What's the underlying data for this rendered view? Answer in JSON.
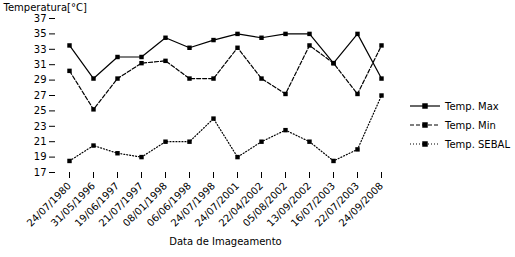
{
  "chart_data": {
    "type": "line",
    "xlabel": "Data de Imageamento",
    "ylabel": "Temperatura[°C]",
    "categories": [
      "24/07/1980",
      "31/05/1996",
      "19/06/1997",
      "21/07/1997",
      "08/01/1998",
      "06/06/1998",
      "24/07/1998",
      "24/07/2001",
      "22/04/2002",
      "05/08/2002",
      "13/09/2002",
      "16/07/2003",
      "22/07/2003",
      "24/09/2008"
    ],
    "series": [
      {
        "name": "Temp. Max",
        "color": "#000000",
        "marker": "square",
        "line_style": "solid",
        "values": [
          33.5,
          29.2,
          32.0,
          32.0,
          34.5,
          33.2,
          34.2,
          35.0,
          34.5,
          35.0,
          35.0,
          31.2,
          35.0,
          29.2
        ]
      },
      {
        "name": "Temp. Min",
        "color": "#000000",
        "marker": "square",
        "line_style": "dashed",
        "values": [
          30.2,
          25.2,
          29.2,
          31.2,
          31.5,
          29.2,
          29.2,
          33.2,
          29.2,
          27.2,
          33.5,
          31.2,
          27.2,
          33.5
        ]
      },
      {
        "name": "Temp. SEBAL",
        "color": "#000000",
        "marker": "square",
        "line_style": "dotted",
        "values": [
          18.5,
          20.5,
          19.5,
          19.0,
          21.0,
          21.0,
          24.0,
          19.0,
          21.0,
          22.5,
          21.0,
          18.5,
          20.0,
          27.0
        ]
      }
    ],
    "ylim": [
      17,
      37
    ],
    "yticks": [
      17,
      19,
      21,
      23,
      25,
      27,
      29,
      31,
      33,
      35,
      37
    ],
    "legend": "right"
  }
}
